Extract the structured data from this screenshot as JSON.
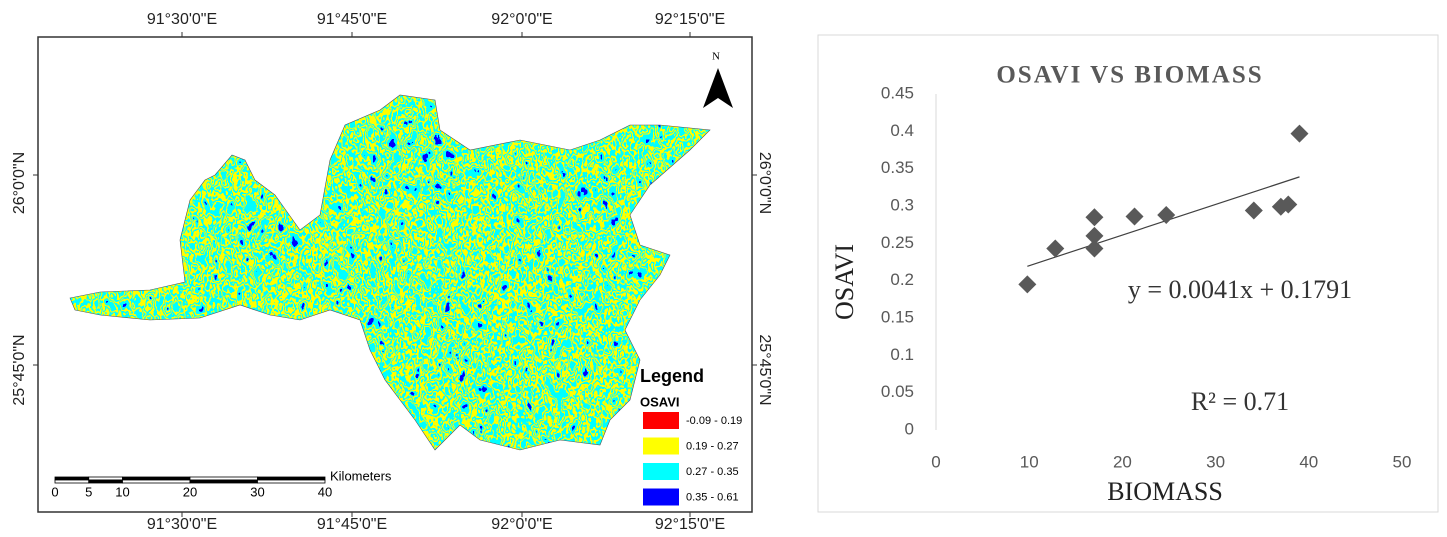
{
  "map": {
    "lon_labels": [
      "91°30'0\"E",
      "91°45'0\"E",
      "92°0'0\"E",
      "92°15'0\"E"
    ],
    "lat_labels": [
      "26°0'0\"N",
      "25°45'0\"N"
    ],
    "north": "N",
    "legend": {
      "title": "Legend",
      "field": "OSAVI",
      "items": [
        {
          "label": "-0.09 - 0.19",
          "color": "#ff0000"
        },
        {
          "label": "0.19 - 0.27",
          "color": "#ffff00"
        },
        {
          "label": "0.27 - 0.35",
          "color": "#00ffff"
        },
        {
          "label": "0.35 - 0.61",
          "color": "#0000ff"
        }
      ]
    },
    "scale": {
      "ticks": [
        0,
        5,
        10,
        20,
        30,
        40
      ],
      "unit": "Kilometers"
    }
  },
  "chart_data": {
    "type": "scatter",
    "title": "OSAVI VS BIOMASS",
    "xlabel": "BIOMASS",
    "ylabel": "OSAVI",
    "x": [
      9.8,
      12.8,
      17,
      17,
      17,
      21.3,
      24.7,
      34.1,
      37,
      37.8,
      39
    ],
    "values": [
      0.195,
      0.243,
      0.285,
      0.26,
      0.243,
      0.286,
      0.288,
      0.294,
      0.299,
      0.302,
      0.397
    ],
    "color": "#595959",
    "xlim": [
      0,
      50
    ],
    "xticks": [
      0,
      10,
      20,
      30,
      40,
      50
    ],
    "ylim": [
      0,
      0.45
    ],
    "yticks": [
      0,
      0.05,
      0.1,
      0.15,
      0.2,
      0.25,
      0.3,
      0.35,
      0.4,
      0.45
    ],
    "grid": false,
    "trendline": {
      "slope": 0.0041,
      "intercept": 0.1791,
      "color": "#404040"
    },
    "annotations": [
      "y = 0.0041x + 0.1791",
      "R² = 0.71"
    ]
  }
}
